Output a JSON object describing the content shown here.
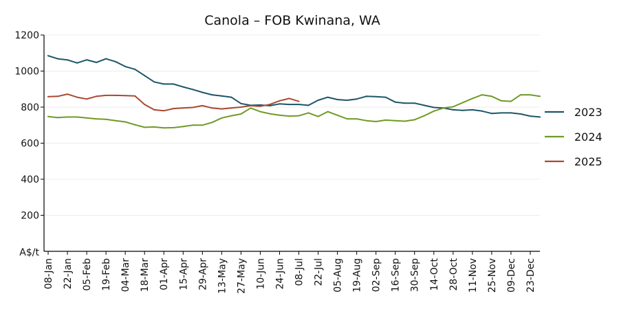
{
  "chart_data": {
    "type": "line",
    "title": "Canola – FOB Kwinana, WA",
    "ylabel": "A$/t",
    "xlabel": "",
    "ylim": [
      0,
      1200
    ],
    "yticks": [
      200,
      400,
      600,
      800,
      1000,
      1200
    ],
    "grid": "horizontal",
    "legend_position": "right",
    "x_categories": [
      "08-Jan",
      "15-Jan",
      "22-Jan",
      "29-Jan",
      "05-Feb",
      "12-Feb",
      "19-Feb",
      "26-Feb",
      "04-Mar",
      "11-Mar",
      "18-Mar",
      "25-Mar",
      "01-Apr",
      "08-Apr",
      "15-Apr",
      "22-Apr",
      "29-Apr",
      "06-May",
      "13-May",
      "20-May",
      "27-May",
      "03-Jun",
      "10-Jun",
      "17-Jun",
      "24-Jun",
      "01-Jul",
      "08-Jul",
      "15-Jul",
      "22-Jul",
      "29-Jul",
      "05-Aug",
      "12-Aug",
      "19-Aug",
      "26-Aug",
      "02-Sep",
      "09-Sep",
      "16-Sep",
      "23-Sep",
      "30-Sep",
      "07-Oct",
      "14-Oct",
      "21-Oct",
      "28-Oct",
      "04-Nov",
      "11-Nov",
      "18-Nov",
      "25-Nov",
      "02-Dec",
      "09-Dec",
      "16-Dec",
      "23-Dec",
      "30-Dec"
    ],
    "x_tick_labels": [
      "08-Jan",
      "22-Jan",
      "05-Feb",
      "19-Feb",
      "04-Mar",
      "18-Mar",
      "01-Apr",
      "15-Apr",
      "29-Apr",
      "13-May",
      "27-May",
      "10-Jun",
      "24-Jun",
      "08-Jul",
      "22-Jul",
      "05-Aug",
      "19-Aug",
      "02-Sep",
      "16-Sep",
      "30-Sep",
      "14-Oct",
      "28-Oct",
      "11-Nov",
      "25-Nov",
      "09-Dec",
      "23-Dec"
    ],
    "series": [
      {
        "name": "2023",
        "color": "#1b5566",
        "values": [
          1085,
          1068,
          1062,
          1045,
          1062,
          1048,
          1068,
          1052,
          1025,
          1010,
          975,
          940,
          928,
          928,
          912,
          898,
          882,
          868,
          862,
          855,
          820,
          810,
          812,
          808,
          818,
          815,
          815,
          810,
          838,
          855,
          842,
          838,
          845,
          860,
          858,
          855,
          828,
          822,
          822,
          810,
          798,
          795,
          785,
          782,
          785,
          778,
          765,
          768,
          768,
          762,
          750,
          745
        ]
      },
      {
        "name": "2024",
        "color": "#6f9a25",
        "values": [
          748,
          742,
          745,
          745,
          740,
          735,
          732,
          725,
          718,
          702,
          688,
          690,
          685,
          686,
          692,
          700,
          700,
          715,
          740,
          752,
          762,
          795,
          775,
          763,
          755,
          750,
          752,
          768,
          748,
          775,
          755,
          735,
          735,
          725,
          720,
          728,
          725,
          722,
          730,
          752,
          778,
          795,
          802,
          825,
          848,
          868,
          860,
          835,
          832,
          868,
          868,
          860
        ]
      },
      {
        "name": "2025",
        "color": "#a84832",
        "values": [
          858,
          860,
          872,
          855,
          845,
          860,
          865,
          865,
          864,
          862,
          815,
          785,
          780,
          792,
          795,
          798,
          808,
          795,
          790,
          795,
          800,
          808,
          805,
          815,
          835,
          848,
          832
        ]
      }
    ]
  }
}
